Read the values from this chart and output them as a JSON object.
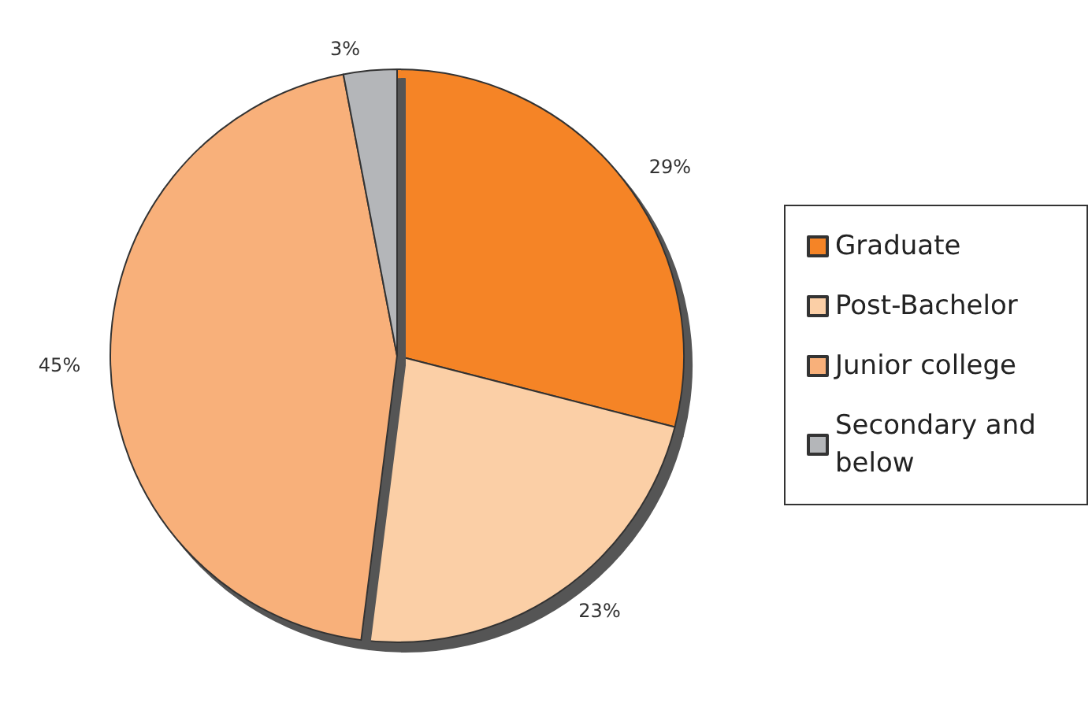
{
  "chart_data": {
    "type": "pie",
    "categories": [
      "Graduate",
      "Post-Bachelor",
      "Junior college",
      "Secondary and below"
    ],
    "values": [
      29,
      23,
      45,
      3
    ],
    "value_labels": [
      "29%",
      "23%",
      "45%",
      "3%"
    ],
    "colors": [
      "#f58426",
      "#fbcfa6",
      "#f8b07a",
      "#b4b6b9"
    ],
    "legend": "right"
  }
}
